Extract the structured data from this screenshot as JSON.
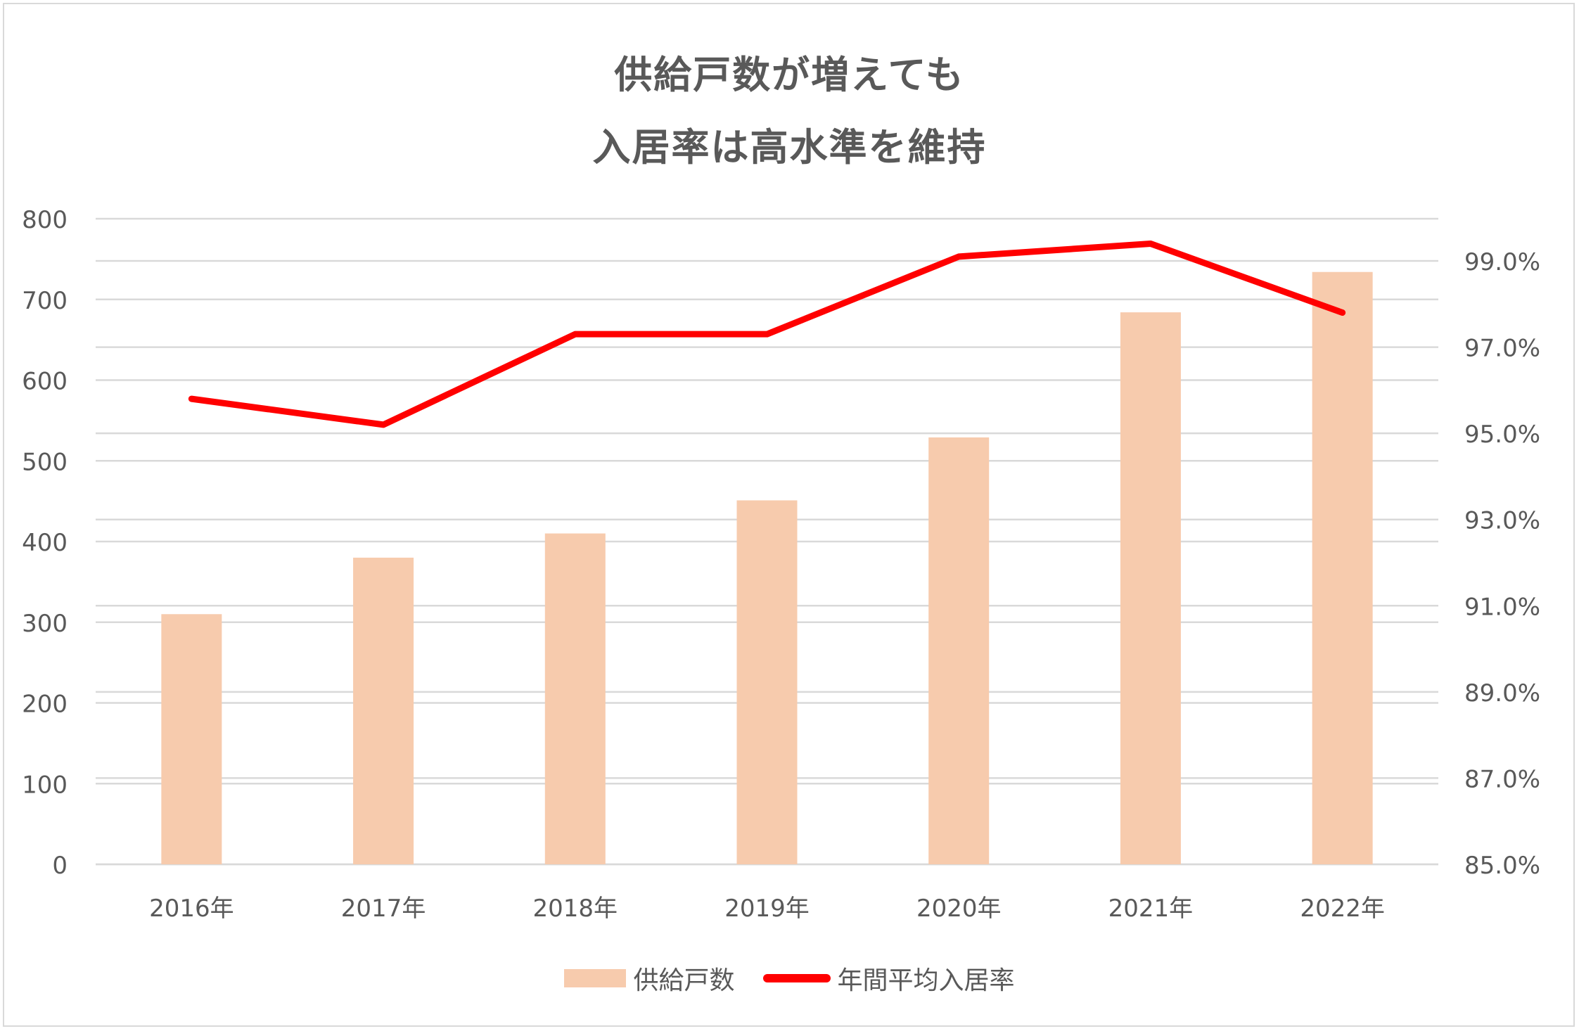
{
  "chart_data": {
    "type": "bar+line",
    "title": "供給戸数が増えても 入居率は高水準を維持",
    "title_lines": [
      "供給戸数が増えても",
      "入居率は高水準を維持"
    ],
    "categories": [
      "2016年",
      "2017年",
      "2018年",
      "2019年",
      "2020年",
      "2021年",
      "2022年"
    ],
    "series": [
      {
        "name": "供給戸数",
        "type": "bar",
        "axis": "left",
        "color": "#f7cbad",
        "values": [
          310,
          380,
          410,
          451,
          529,
          684,
          734
        ]
      },
      {
        "name": "年間平均入居率",
        "type": "line",
        "axis": "right",
        "color": "#ff0000",
        "values": [
          95.8,
          95.2,
          97.3,
          97.3,
          99.1,
          99.4,
          97.8
        ],
        "unit": "%"
      }
    ],
    "left_axis": {
      "min": 0,
      "max": 800,
      "ticks": [
        "0",
        "100",
        "200",
        "300",
        "400",
        "500",
        "600",
        "700",
        "800"
      ]
    },
    "right_axis": {
      "min": 85,
      "max": 99,
      "ticks": [
        "85.0%",
        "87.0%",
        "89.0%",
        "91.0%",
        "93.0%",
        "95.0%",
        "97.0%",
        "99.0%"
      ]
    },
    "grid": true,
    "legend_position": "bottom",
    "xlabel": "",
    "ylabel": ""
  },
  "legend": {
    "bar_label": "供給戸数",
    "line_label": "年間平均入居率"
  }
}
